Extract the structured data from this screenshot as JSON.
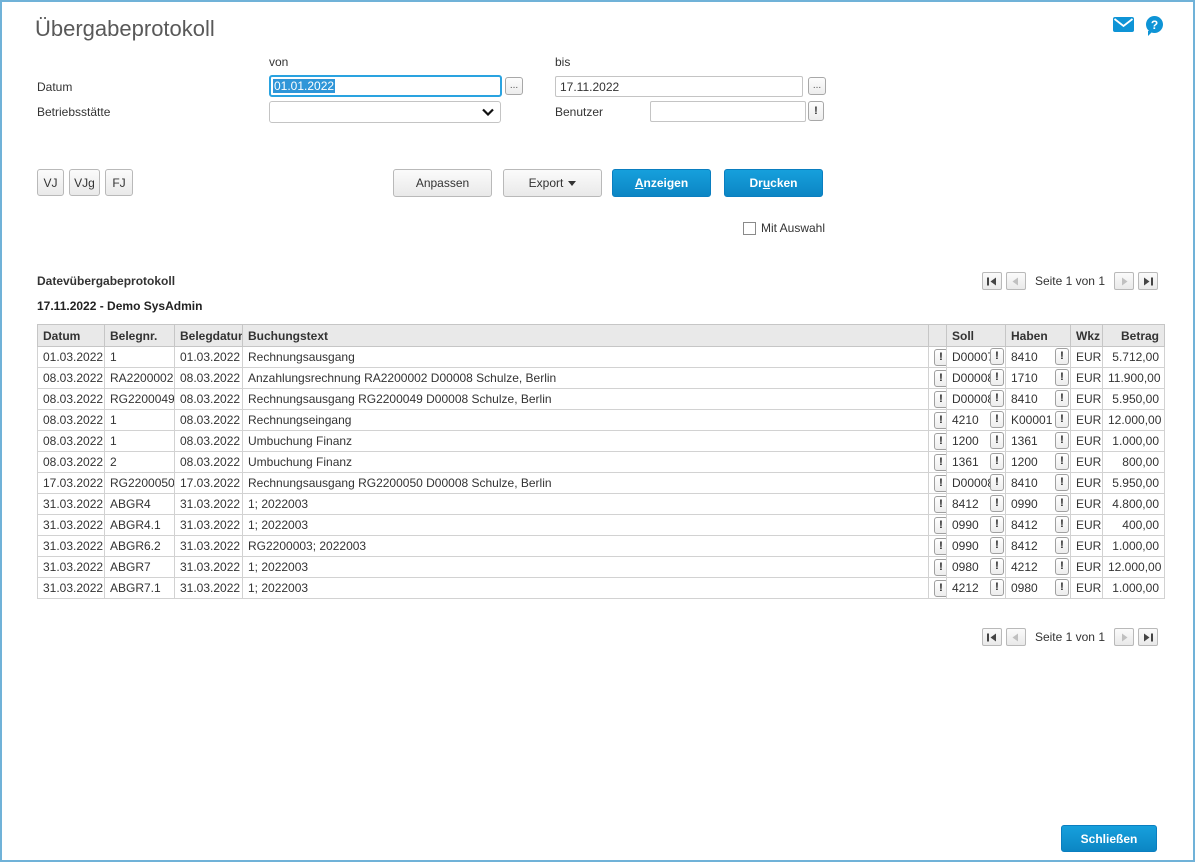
{
  "header": {
    "title": "Übergabeprotokoll",
    "icons": {
      "mail": "envelope",
      "help": "question-mark-bubble"
    }
  },
  "filter": {
    "von_label": "von",
    "bis_label": "bis",
    "datum_label": "Datum",
    "datum_von_value": "01.01.2022",
    "datum_bis_value": "17.11.2022",
    "betriebsstaette_label": "Betriebsstätte",
    "betriebsstaette_value": "",
    "benutzer_label": "Benutzer",
    "benutzer_value": "",
    "browse_button_label": "...",
    "warning_button_label": "!"
  },
  "toolbar": {
    "vj": "VJ",
    "vjg": "VJg",
    "fj": "FJ",
    "anpassen": "Anpassen",
    "export": "Export",
    "anzeigen": {
      "pre": "",
      "key": "A",
      "post": "nzeigen"
    },
    "drucken": {
      "pre": "Dr",
      "key": "u",
      "post": "cken"
    },
    "mit_auswahl_label": "Mit Auswahl",
    "mit_auswahl_checked": false
  },
  "report": {
    "title": "Datevübergabeprotokoll",
    "subtitle": "17.11.2022 - Demo SysAdmin",
    "pagination": {
      "label": "Seite 1 von 1",
      "icons": [
        "skip-to-first",
        "previous-page",
        "next-page",
        "skip-to-last"
      ]
    },
    "table": {
      "headers": [
        "Datum",
        "Belegnr.",
        "Belegdatum",
        "Buchungstext",
        "",
        "Soll",
        "Haben",
        "Wkz",
        "Betrag"
      ],
      "warning_button_label": "!",
      "rows": [
        {
          "datum": "01.03.2022",
          "belegnr": "1",
          "belegdatum": "01.03.2022",
          "buchungstext": "Rechnungsausgang",
          "soll": "D00007",
          "haben": "8410",
          "wkz": "EUR",
          "betrag": "5.712,00"
        },
        {
          "datum": "08.03.2022",
          "belegnr": "RA2200002",
          "belegdatum": "08.03.2022",
          "buchungstext": "Anzahlungsrechnung RA2200002 D00008 Schulze, Berlin",
          "soll": "D00008",
          "haben": "1710",
          "wkz": "EUR",
          "betrag": "11.900,00"
        },
        {
          "datum": "08.03.2022",
          "belegnr": "RG2200049",
          "belegdatum": "08.03.2022",
          "buchungstext": "Rechnungsausgang RG2200049 D00008 Schulze, Berlin",
          "soll": "D00008",
          "haben": "8410",
          "wkz": "EUR",
          "betrag": "5.950,00"
        },
        {
          "datum": "08.03.2022",
          "belegnr": "1",
          "belegdatum": "08.03.2022",
          "buchungstext": "Rechnungseingang",
          "soll": "4210",
          "haben": "K00001",
          "wkz": "EUR",
          "betrag": "12.000,00"
        },
        {
          "datum": "08.03.2022",
          "belegnr": "1",
          "belegdatum": "08.03.2022",
          "buchungstext": "Umbuchung Finanz",
          "soll": "1200",
          "haben": "1361",
          "wkz": "EUR",
          "betrag": "1.000,00"
        },
        {
          "datum": "08.03.2022",
          "belegnr": "2",
          "belegdatum": "08.03.2022",
          "buchungstext": "Umbuchung Finanz",
          "soll": "1361",
          "haben": "1200",
          "wkz": "EUR",
          "betrag": "800,00"
        },
        {
          "datum": "17.03.2022",
          "belegnr": "RG2200050",
          "belegdatum": "17.03.2022",
          "buchungstext": "Rechnungsausgang RG2200050 D00008 Schulze, Berlin",
          "soll": "D00008",
          "haben": "8410",
          "wkz": "EUR",
          "betrag": "5.950,00"
        },
        {
          "datum": "31.03.2022",
          "belegnr": "ABGR4",
          "belegdatum": "31.03.2022",
          "buchungstext": "1; 2022003",
          "soll": "8412",
          "haben": "0990",
          "wkz": "EUR",
          "betrag": "4.800,00"
        },
        {
          "datum": "31.03.2022",
          "belegnr": "ABGR4.1",
          "belegdatum": "31.03.2022",
          "buchungstext": "1; 2022003",
          "soll": "0990",
          "haben": "8412",
          "wkz": "EUR",
          "betrag": "400,00"
        },
        {
          "datum": "31.03.2022",
          "belegnr": "ABGR6.2",
          "belegdatum": "31.03.2022",
          "buchungstext": "RG2200003; 2022003",
          "soll": "0990",
          "haben": "8412",
          "wkz": "EUR",
          "betrag": "1.000,00"
        },
        {
          "datum": "31.03.2022",
          "belegnr": "ABGR7",
          "belegdatum": "31.03.2022",
          "buchungstext": "1; 2022003",
          "soll": "0980",
          "haben": "4212",
          "wkz": "EUR",
          "betrag": "12.000,00"
        },
        {
          "datum": "31.03.2022",
          "belegnr": "ABGR7.1",
          "belegdatum": "31.03.2022",
          "buchungstext": "1; 2022003",
          "soll": "4212",
          "haben": "0980",
          "wkz": "EUR",
          "betrag": "1.000,00"
        }
      ]
    }
  },
  "footer": {
    "schliessen": "Schließen"
  },
  "colors": {
    "accent": "#0e94d6",
    "window_border": "#70b2d8",
    "focus_border": "#2aa3e0",
    "selection_bg": "#2f96d8"
  }
}
